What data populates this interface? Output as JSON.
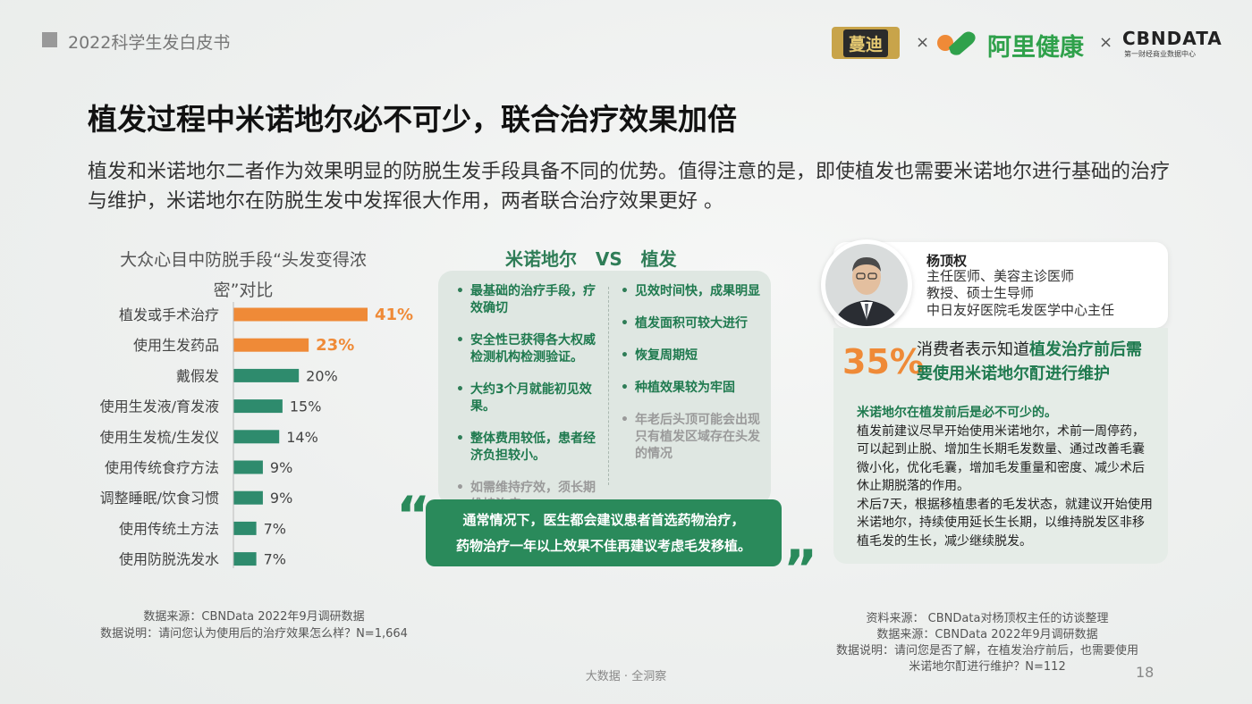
{
  "header": {
    "doc_title": "2022科学生发白皮书",
    "times": "×"
  },
  "logos": {
    "mandi": "蔓迪",
    "ali": "阿里健康",
    "cbn": "CBNDATA",
    "cbn_sub": "第一财经商业数据中心"
  },
  "title": "植发过程中米诺地尔必不可少，联合治疗效果加倍",
  "intro": "植发和米诺地尔二者作为效果明显的防脱生发手段具备不同的优势。值得注意的是，即使植发也需要米诺地尔进行基础的治疗与维护，米诺地尔在防脱生发中发挥很大作用，两者联合治疗效果更好 。",
  "chart_title_l1": "大众心目中防脱手段“头发变得浓",
  "chart_title_l2": "密”对比",
  "chart_data": {
    "type": "bar",
    "orientation": "horizontal",
    "title": "大众心目中防脱手段“头发变得浓密”对比",
    "categories": [
      "植发或手术治疗",
      "使用生发药品",
      "戴假发",
      "使用生发液/育发液",
      "使用生发梳/生发仪",
      "使用传统食疗方法",
      "调整睡眠/饮食习惯",
      "使用传统土方法",
      "使用防脱洗发水"
    ],
    "values": [
      41,
      23,
      20,
      15,
      14,
      9,
      9,
      7,
      7
    ],
    "labels": [
      "41%",
      "23%",
      "20%",
      "15%",
      "14%",
      "9%",
      "9%",
      "7%",
      "7%"
    ],
    "highlight": [
      true,
      true,
      false,
      false,
      false,
      false,
      false,
      false,
      false
    ],
    "colors": {
      "highlight": "#ef8a37",
      "normal": "#2e8b6d"
    }
  },
  "source_left": {
    "l1": "数据来源：CBNData 2022年9月调研数据",
    "l2": "数据说明：请问您认为使用后的治疗效果怎么样？N=1,664"
  },
  "vs": {
    "left_title": "米诺地尔",
    "vs": "VS",
    "right_title": "植发",
    "left_items": [
      "最基础的治疗手段，疗效确切",
      "安全性已获得各大权威检测机构检测验证。",
      "大约3个月就能初见效果。",
      "整体费用较低，患者经济负担较小。",
      "如需维持疗效，须长期维持治疗"
    ],
    "right_items": [
      "见效时间快，成果明显",
      "植发面积可较大进行",
      "恢复周期短",
      "种植效果较为牢固",
      "年老后头顶可能会出现只有植发区域存在头发的情况"
    ]
  },
  "quote": {
    "l1": "通常情况下，医生都会建议患者首选药物治疗，",
    "l2": "药物治疗一年以上效果不佳再建议考虑毛发移植。",
    "open": "“",
    "close": "”"
  },
  "doctor": {
    "name": "杨顶权",
    "r1": "主任医师、美容主诊医师",
    "r2": "教授、硕士生导师",
    "r3": "中日友好医院毛发医学中心主任"
  },
  "stat": {
    "pct": "35%",
    "pre": "消费者表示知道",
    "hl1": "植发治疗前后需",
    "hl2": "要使用米诺地尔酊进行维护"
  },
  "body": {
    "hl": "米诺地尔在植发前后是必不可少的。",
    "p1": "植发前建议尽早开始使用米诺地尔，术前一周停药，可以起到止脱、增加生长期毛发数量、通过改善毛囊微小化，优化毛囊，增加毛发重量和密度、减少术后休止期脱落的作用。",
    "p2": "术后7天，根据移植患者的毛发状态，就建议开始使用米诺地尔，持续使用延长生长期，以维持脱发区非移植毛发的生长，减少继续脱发。"
  },
  "source_right": {
    "l1": "资料来源： CBNData对杨顶权主任的访谈整理",
    "l2": "数据来源：CBNData 2022年9月调研数据",
    "l3": "数据说明：请问您是否了解，在植发治疗前后，也需要使用",
    "l4": "米诺地尔酊进行维护？N=112"
  },
  "footer": "大数据 · 全洞察",
  "page_number": "18"
}
